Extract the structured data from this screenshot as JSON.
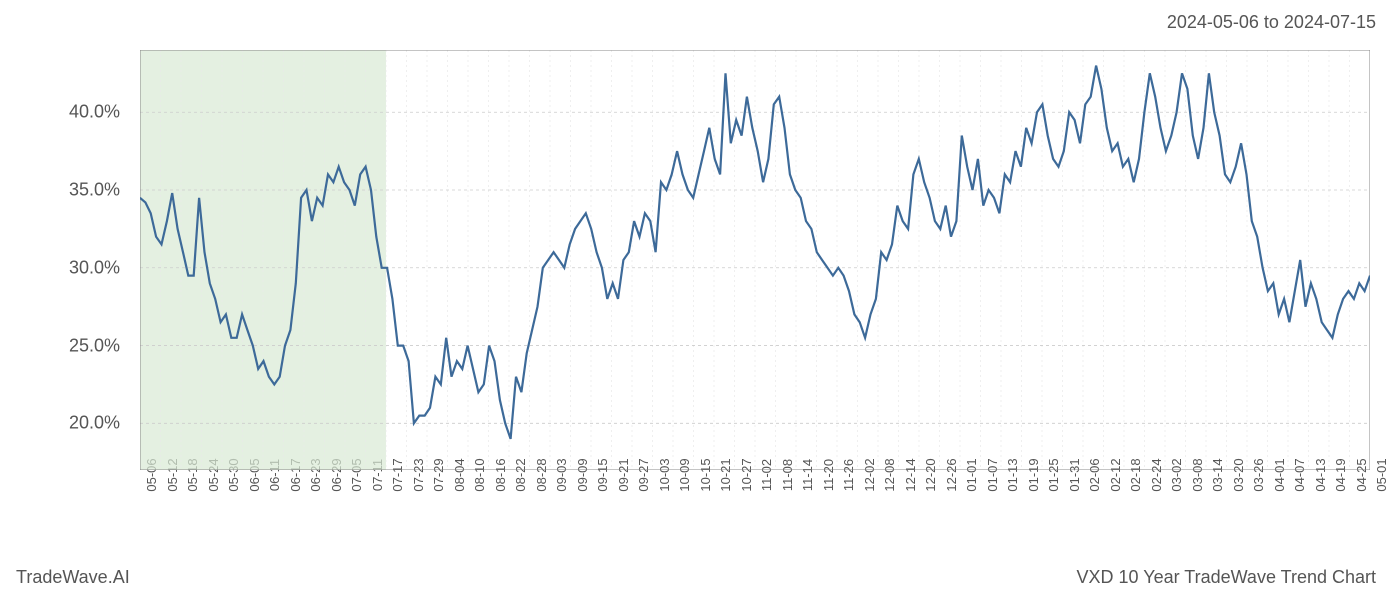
{
  "header": {
    "date_range": "2024-05-06 to 2024-07-15"
  },
  "footer": {
    "brand": "TradeWave.AI",
    "chart_title": "VXD 10 Year TradeWave Trend Chart"
  },
  "chart": {
    "type": "line",
    "background_color": "#ffffff",
    "line_color": "#3d6a99",
    "line_width": 2.2,
    "highlight_fill": "#d9e9d4",
    "highlight_opacity": 0.7,
    "grid_major_color": "#cccccc",
    "grid_minor_color": "#e8e8e8",
    "border_color": "#888888",
    "text_color": "#555555",
    "label_fontsize": 18,
    "xlabel_fontsize": 13,
    "ylim": [
      17,
      44
    ],
    "yticks": [
      20,
      25,
      30,
      35,
      40
    ],
    "ytick_labels": [
      "20.0%",
      "25.0%",
      "30.0%",
      "35.0%",
      "40.0%"
    ],
    "xticks": [
      "05-06",
      "05-12",
      "05-18",
      "05-24",
      "05-30",
      "06-05",
      "06-11",
      "06-17",
      "06-23",
      "06-29",
      "07-05",
      "07-11",
      "07-17",
      "07-23",
      "07-29",
      "08-04",
      "08-10",
      "08-16",
      "08-22",
      "08-28",
      "09-03",
      "09-09",
      "09-15",
      "09-21",
      "09-27",
      "10-03",
      "10-09",
      "10-15",
      "10-21",
      "10-27",
      "11-02",
      "11-08",
      "11-14",
      "11-20",
      "11-26",
      "12-02",
      "12-08",
      "12-14",
      "12-20",
      "12-26",
      "01-01",
      "01-07",
      "01-13",
      "01-19",
      "01-25",
      "01-31",
      "02-06",
      "02-12",
      "02-18",
      "02-24",
      "03-02",
      "03-08",
      "03-14",
      "03-20",
      "03-26",
      "04-01",
      "04-07",
      "04-13",
      "04-19",
      "04-25",
      "05-01"
    ],
    "highlight_range": {
      "start_idx": 0,
      "end_idx": 12
    },
    "data": [
      34.5,
      34.2,
      33.5,
      32.0,
      31.5,
      33.0,
      34.8,
      32.5,
      31.0,
      29.5,
      29.5,
      34.5,
      31.0,
      29.0,
      28.0,
      26.5,
      27.0,
      25.5,
      25.5,
      27.0,
      26.0,
      25.0,
      23.5,
      24.0,
      23.0,
      22.5,
      23.0,
      25.0,
      26.0,
      29.0,
      34.5,
      35.0,
      33.0,
      34.5,
      34.0,
      36.0,
      35.5,
      36.5,
      35.5,
      35.0,
      34.0,
      36.0,
      36.5,
      35.0,
      32.0,
      30.0,
      30.0,
      28.0,
      25.0,
      25.0,
      24.0,
      20.0,
      20.5,
      20.5,
      21.0,
      23.0,
      22.5,
      25.5,
      23.0,
      24.0,
      23.5,
      25.0,
      23.5,
      22.0,
      22.5,
      25.0,
      24.0,
      21.5,
      20.0,
      19.0,
      23.0,
      22.0,
      24.5,
      26.0,
      27.5,
      30.0,
      30.5,
      31.0,
      30.5,
      30.0,
      31.5,
      32.5,
      33.0,
      33.5,
      32.5,
      31.0,
      30.0,
      28.0,
      29.0,
      28.0,
      30.5,
      31.0,
      33.0,
      32.0,
      33.5,
      33.0,
      31.0,
      35.5,
      35.0,
      36.0,
      37.5,
      36.0,
      35.0,
      34.5,
      36.0,
      37.5,
      39.0,
      37.0,
      36.0,
      42.5,
      38.0,
      39.5,
      38.5,
      41.0,
      39.0,
      37.5,
      35.5,
      37.0,
      40.5,
      41.0,
      39.0,
      36.0,
      35.0,
      34.5,
      33.0,
      32.5,
      31.0,
      30.5,
      30.0,
      29.5,
      30.0,
      29.5,
      28.5,
      27.0,
      26.5,
      25.5,
      27.0,
      28.0,
      31.0,
      30.5,
      31.5,
      34.0,
      33.0,
      32.5,
      36.0,
      37.0,
      35.5,
      34.5,
      33.0,
      32.5,
      34.0,
      32.0,
      33.0,
      38.5,
      36.5,
      35.0,
      37.0,
      34.0,
      35.0,
      34.5,
      33.5,
      36.0,
      35.5,
      37.5,
      36.5,
      39.0,
      38.0,
      40.0,
      40.5,
      38.5,
      37.0,
      36.5,
      37.5,
      40.0,
      39.5,
      38.0,
      40.5,
      41.0,
      43.0,
      41.5,
      39.0,
      37.5,
      38.0,
      36.5,
      37.0,
      35.5,
      37.0,
      40.0,
      42.5,
      41.0,
      39.0,
      37.5,
      38.5,
      40.0,
      42.5,
      41.5,
      38.5,
      37.0,
      39.0,
      42.5,
      40.0,
      38.5,
      36.0,
      35.5,
      36.5,
      38.0,
      36.0,
      33.0,
      32.0,
      30.0,
      28.5,
      29.0,
      27.0,
      28.0,
      26.5,
      28.5,
      30.5,
      27.5,
      29.0,
      28.0,
      26.5,
      26.0,
      25.5,
      27.0,
      28.0,
      28.5,
      28.0,
      29.0,
      28.5,
      29.5
    ]
  }
}
